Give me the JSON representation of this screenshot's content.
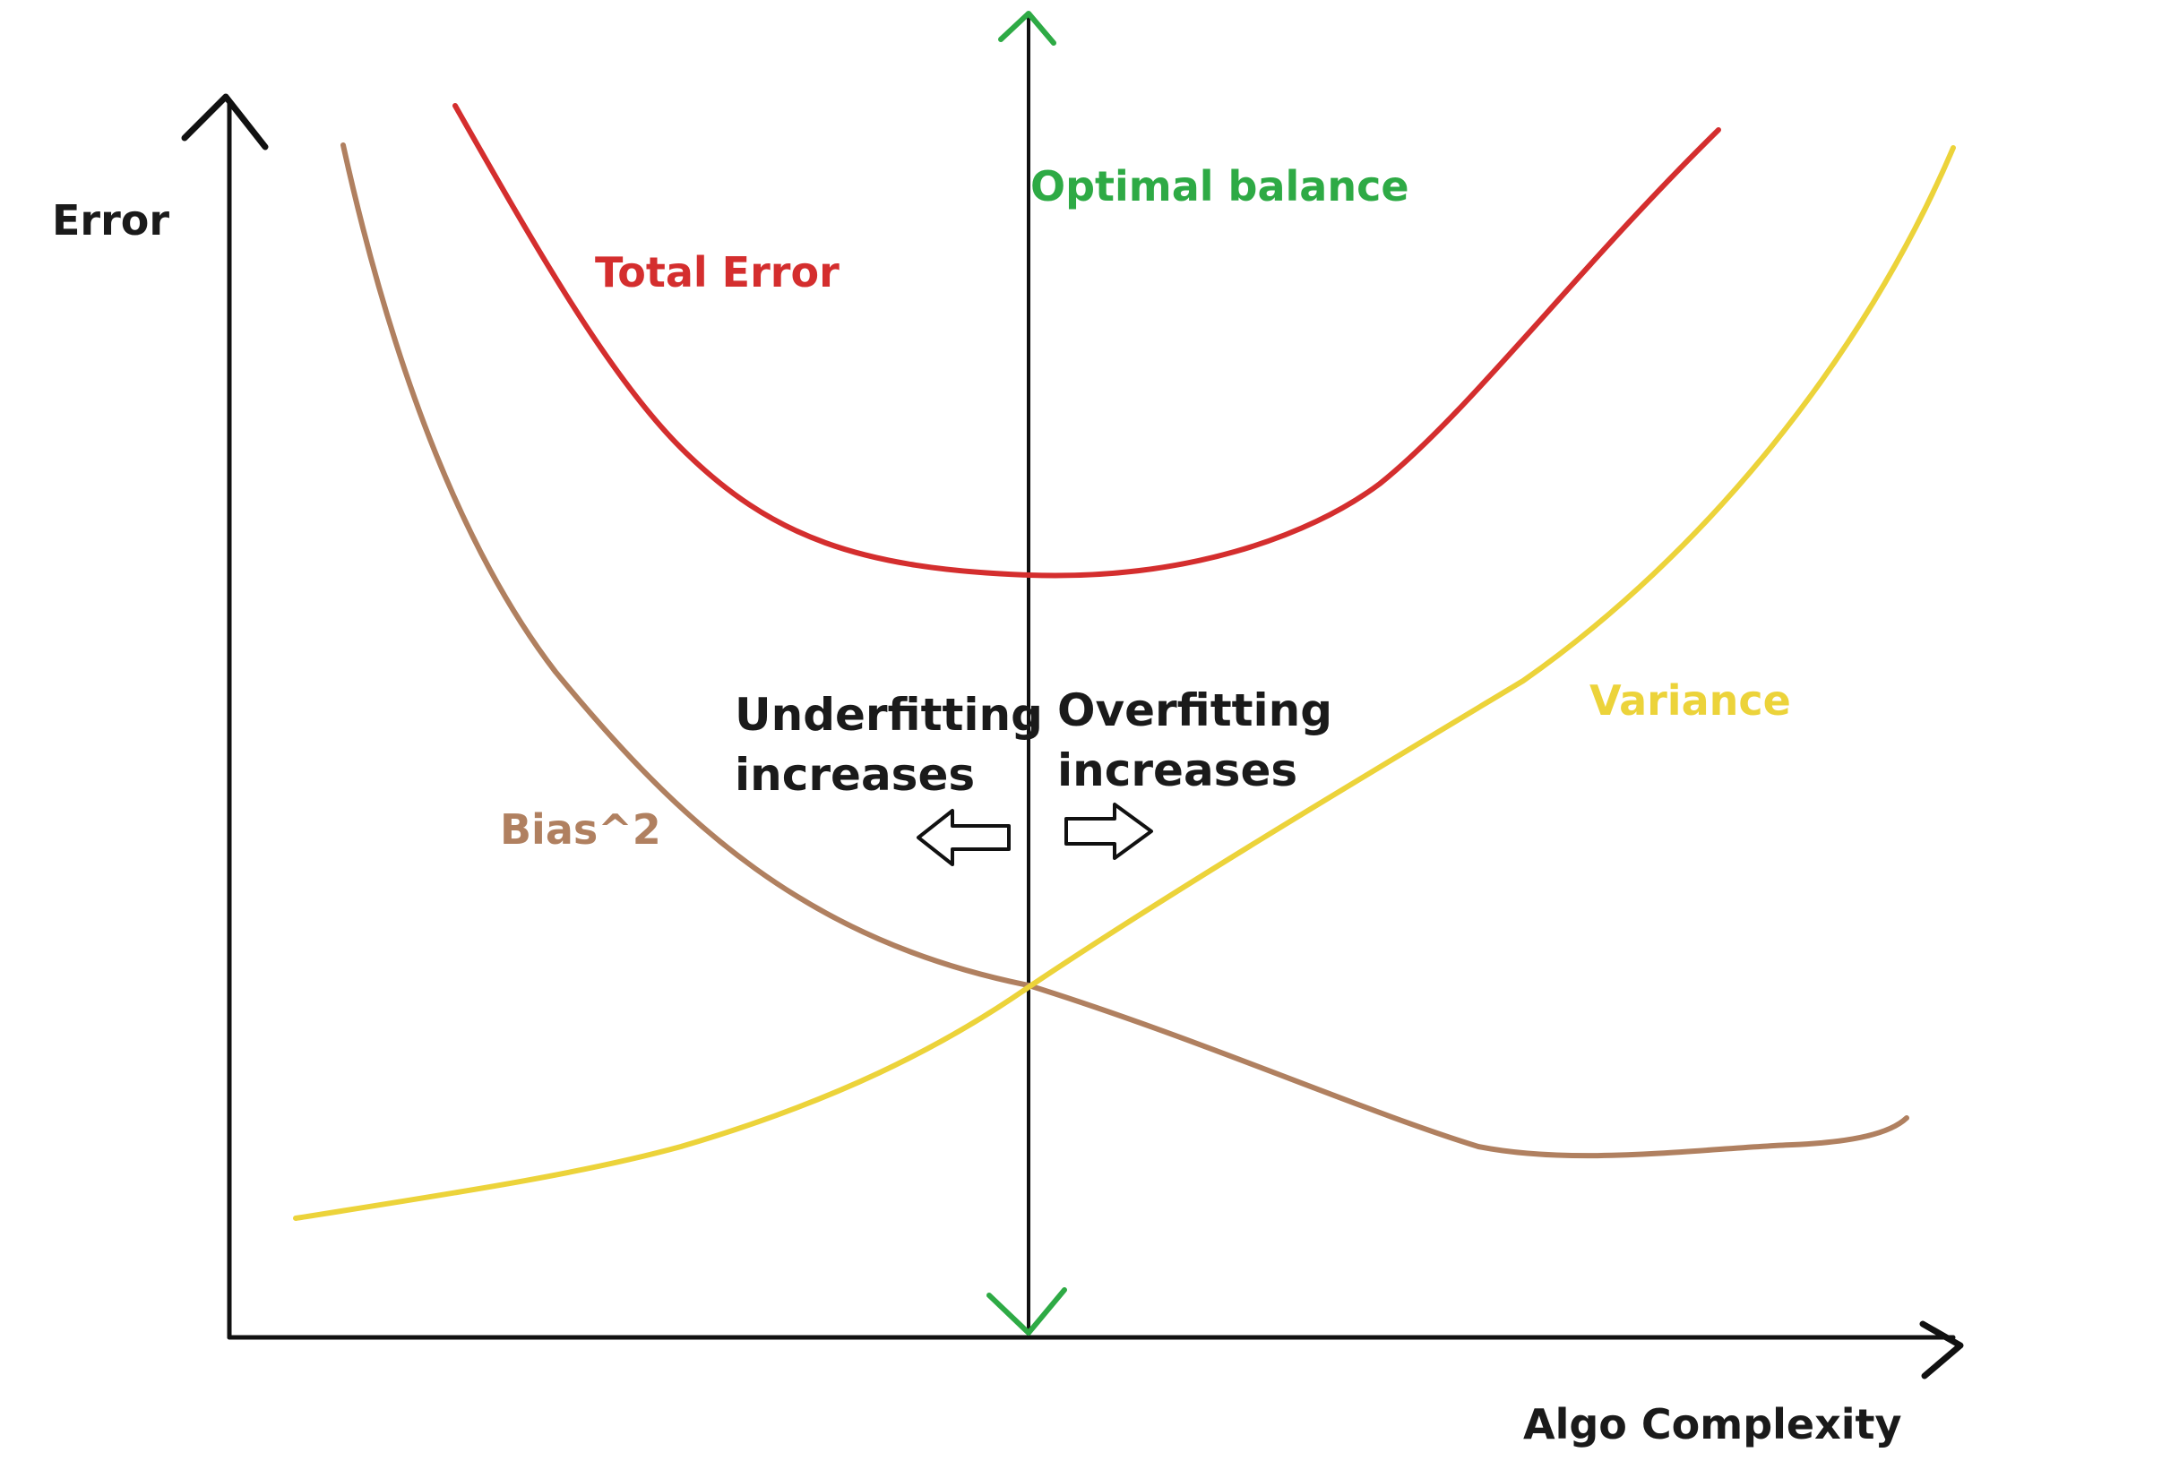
{
  "axes": {
    "y_label": "Error",
    "x_label": "Algo Complexity"
  },
  "optimal": {
    "label": "Optimal balance",
    "color": "#2eaa45"
  },
  "curves": {
    "total_error": {
      "label": "Total Error",
      "color": "#d42e2e"
    },
    "bias": {
      "label": "Bias^2",
      "color": "#b08060"
    },
    "variance": {
      "label": "Variance",
      "color": "#ecd33a"
    }
  },
  "regions": {
    "underfitting": {
      "line1": "Underfitting",
      "line2": "increases",
      "arrow": "left-arrow-icon"
    },
    "overfitting": {
      "line1": "Overfitting",
      "line2": "increases",
      "arrow": "right-arrow-icon"
    }
  }
}
